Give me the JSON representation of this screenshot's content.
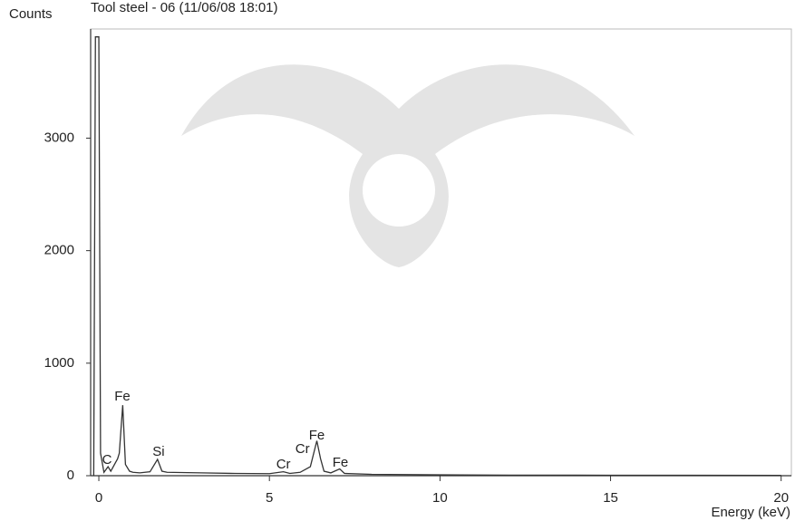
{
  "chart_data": {
    "type": "line",
    "title": "Tool steel - 06 (11/06/08 18:01)",
    "y_label": "Counts",
    "x_label": "Energy (keV)",
    "x": [
      -0.15,
      -0.1,
      0.0,
      0.05,
      0.15,
      0.27,
      0.35,
      0.55,
      0.6,
      0.7,
      0.78,
      0.9,
      1.0,
      1.2,
      1.5,
      1.72,
      1.85,
      2.0,
      3.0,
      4.0,
      5.0,
      5.41,
      5.6,
      5.9,
      6.2,
      6.39,
      6.5,
      6.6,
      6.8,
      7.06,
      7.2,
      8.0,
      10.0,
      12.0,
      15.0,
      20.0
    ],
    "series": [
      {
        "color": "#333333",
        "values": [
          0,
          3900,
          3900,
          200,
          30,
          80,
          40,
          150,
          200,
          627,
          100,
          40,
          30,
          25,
          35,
          145,
          40,
          30,
          25,
          20,
          18,
          35,
          20,
          30,
          80,
          310,
          150,
          40,
          25,
          60,
          20,
          12,
          8,
          5,
          4,
          3
        ]
      }
    ],
    "annotations": [
      {
        "text": "C",
        "x": 0.24,
        "y": 137
      },
      {
        "text": "Fe",
        "x": 0.69,
        "y": 700
      },
      {
        "text": "Si",
        "x": 1.75,
        "y": 209
      },
      {
        "text": "Cr",
        "x": 5.41,
        "y": 97
      },
      {
        "text": "Cr",
        "x": 5.97,
        "y": 233
      },
      {
        "text": "Fe",
        "x": 6.39,
        "y": 354
      },
      {
        "text": "Fe",
        "x": 7.08,
        "y": 113
      }
    ],
    "xlim": [
      -0.24,
      20.3
    ],
    "ylim": [
      0,
      3970
    ],
    "xticks": [
      0,
      5,
      10,
      15,
      20
    ],
    "yticks": [
      0,
      1000,
      2000,
      3000
    ]
  }
}
